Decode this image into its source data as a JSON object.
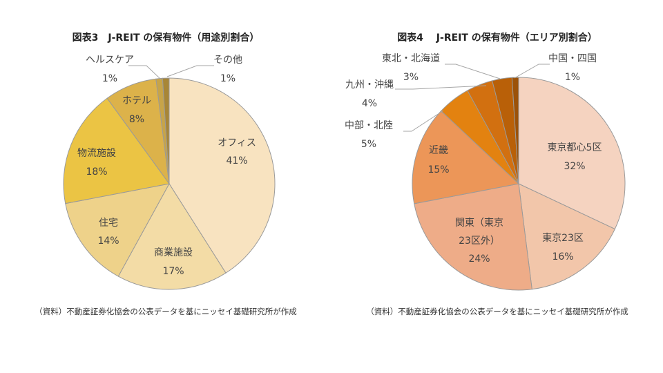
{
  "chart_data": [
    {
      "type": "pie",
      "title": "図表3　J-REIT の保有物件（用途別割合）",
      "source": "（資料）不動産証券化協会の公表データを基にニッセイ基礎研究所が作成",
      "slices": [
        {
          "name": "オフィス",
          "value": 41,
          "label": "41%",
          "color": "#f8e3c0"
        },
        {
          "name": "商業施設",
          "value": 17,
          "label": "17%",
          "color": "#f3dca6"
        },
        {
          "name": "住宅",
          "value": 14,
          "label": "14%",
          "color": "#eed28a"
        },
        {
          "name": "物流施設",
          "value": 18,
          "label": "18%",
          "color": "#ebc444"
        },
        {
          "name": "ホテル",
          "value": 8,
          "label": "8%",
          "color": "#dcb24a"
        },
        {
          "name": "ヘルスケア",
          "value": 1,
          "label": "1%",
          "color": "#c7a448"
        },
        {
          "name": "その他",
          "value": 1,
          "label": "1%",
          "color": "#a88636"
        }
      ]
    },
    {
      "type": "pie",
      "title": "図表4　 J-REIT の保有物件（エリア別割合）",
      "source": "（資料）不動産証券化協会の公表データを基にニッセイ基礎研究所が作成",
      "slices": [
        {
          "name": "東京都心5区",
          "value": 32,
          "label": "32%",
          "color": "#f5d3c0"
        },
        {
          "name": "東京23区",
          "value": 16,
          "label": "16%",
          "color": "#f2c6aa"
        },
        {
          "name": "関東（東京23区外）",
          "value": 24,
          "label": "24%",
          "color": "#eeac88"
        },
        {
          "name": "近畿",
          "value": 15,
          "label": "15%",
          "color": "#ec9658"
        },
        {
          "name": "中部・北陸",
          "value": 5,
          "label": "5%",
          "color": "#e38210"
        },
        {
          "name": "九州・沖縄",
          "value": 4,
          "label": "4%",
          "color": "#d27010"
        },
        {
          "name": "東北・北海道",
          "value": 3,
          "label": "3%",
          "color": "#b96008"
        },
        {
          "name": "中国・四国",
          "value": 1,
          "label": "1%",
          "color": "#9c5209"
        }
      ]
    }
  ]
}
